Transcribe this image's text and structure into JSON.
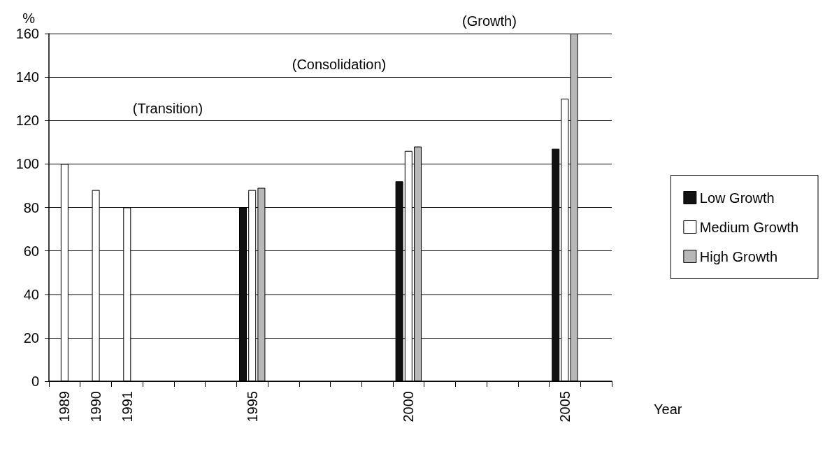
{
  "chart_data": {
    "type": "bar",
    "ylabel": "%",
    "xlabel": "Year",
    "categories": [
      "1989",
      "1990",
      "1991",
      null,
      null,
      null,
      "1995",
      null,
      null,
      null,
      null,
      "2000",
      null,
      null,
      null,
      null,
      "2005",
      null
    ],
    "series": [
      {
        "name": "Low Growth",
        "color": "#111111",
        "values": [
          null,
          null,
          null,
          null,
          null,
          null,
          80,
          null,
          null,
          null,
          null,
          92,
          null,
          null,
          null,
          null,
          107,
          null
        ]
      },
      {
        "name": "Medium Growth",
        "color": "#ffffff",
        "values": [
          100,
          88,
          80,
          null,
          null,
          null,
          88,
          null,
          null,
          null,
          null,
          106,
          null,
          null,
          null,
          null,
          130,
          null
        ]
      },
      {
        "name": "High Growth",
        "color": "#b8b8b8",
        "values": [
          null,
          null,
          null,
          null,
          null,
          null,
          89,
          null,
          null,
          null,
          null,
          108,
          null,
          null,
          null,
          null,
          160,
          null
        ]
      }
    ],
    "ylim": [
      0,
      160
    ],
    "yticks": [
      0,
      20,
      40,
      60,
      80,
      100,
      120,
      140,
      160
    ],
    "grid": "y",
    "legend": "right",
    "annotations": [
      "(Transition)",
      "(Consolidation)",
      "(Growth)"
    ]
  }
}
